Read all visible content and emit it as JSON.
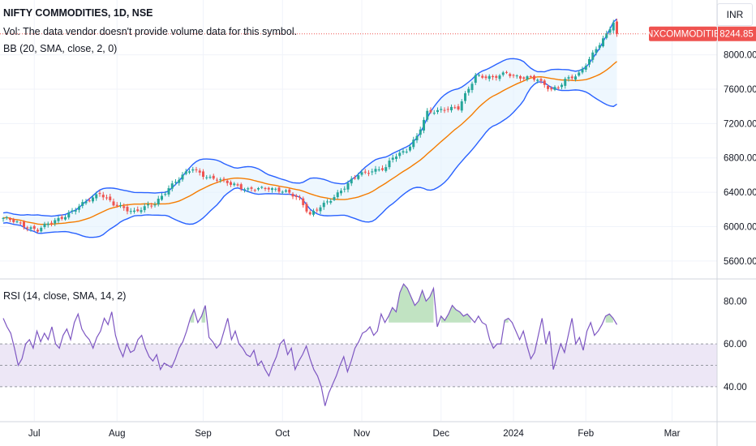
{
  "header": {
    "symbol_line": "NIFTY COMMODITIES, 1D, NSE",
    "vol_note": "Vol: The data vendor doesn't provide volume data for this symbol.",
    "bb_label": "BB (20, SMA, close, 2, 0)",
    "rsi_label": "RSI (14, close, SMA, 14, 2)",
    "currency": "INR"
  },
  "price_tag": {
    "name": "CNXCOMMODITIES",
    "value": "8244.85"
  },
  "colors": {
    "up": "#26a69a",
    "down": "#ef5350",
    "bb_band": "#2962ff",
    "bb_basis": "#f57c00",
    "bb_fill": "#e3f2fd",
    "rsi_line": "#7e57c2",
    "rsi_band": "#ede7f6",
    "ob_fill": "#4caf50"
  },
  "chart_data": [
    {
      "type": "candlestick",
      "title": "NIFTY COMMODITIES, 1D, NSE",
      "ylim": [
        5400,
        8450
      ],
      "y_ticks": [
        "5600.00",
        "6000.00",
        "6400.00",
        "6800.00",
        "7200.00",
        "7600.00",
        "8000.00"
      ],
      "x_ticks": [
        "Jul",
        "Aug",
        "Sep",
        "Oct",
        "Nov",
        "Dec",
        "2024",
        "Feb",
        "Mar"
      ],
      "close_anchors": [
        [
          0,
          6100
        ],
        [
          10,
          5960
        ],
        [
          21,
          6200
        ],
        [
          28,
          6400
        ],
        [
          32,
          6250
        ],
        [
          38,
          6180
        ],
        [
          44,
          6260
        ],
        [
          48,
          6460
        ],
        [
          55,
          6680
        ],
        [
          60,
          6560
        ],
        [
          67,
          6500
        ],
        [
          71,
          6420
        ],
        [
          77,
          6460
        ],
        [
          83,
          6380
        ],
        [
          86,
          6330
        ],
        [
          89,
          6140
        ],
        [
          94,
          6280
        ],
        [
          98,
          6430
        ],
        [
          103,
          6600
        ],
        [
          107,
          6660
        ],
        [
          111,
          6680
        ],
        [
          113,
          6800
        ],
        [
          117,
          6900
        ],
        [
          120,
          7050
        ],
        [
          123,
          7320
        ],
        [
          128,
          7380
        ],
        [
          132,
          7370
        ],
        [
          137,
          7770
        ],
        [
          142,
          7720
        ],
        [
          146,
          7800
        ],
        [
          150,
          7730
        ],
        [
          155,
          7720
        ],
        [
          159,
          7600
        ],
        [
          161,
          7610
        ],
        [
          163,
          7700
        ],
        [
          167,
          7790
        ],
        [
          171,
          8000
        ],
        [
          175,
          8240
        ],
        [
          177,
          8400
        ],
        [
          178,
          8244.85
        ]
      ],
      "bollinger": {
        "length": 20,
        "ma": "SMA",
        "source": "close",
        "mult": 2
      }
    },
    {
      "type": "line",
      "title": "RSI (14, close, SMA, 14, 2)",
      "ylim": [
        24,
        90
      ],
      "y_ticks": [
        "40.00",
        "60.00",
        "80.00"
      ],
      "bands": {
        "upper": 60,
        "middle": 50,
        "lower": 40
      },
      "overbought_fill_above": 70,
      "values": [
        72,
        68,
        65,
        58,
        50,
        53,
        60,
        62,
        58,
        66,
        61,
        65,
        62,
        68,
        60,
        58,
        64,
        67,
        62,
        70,
        74,
        67,
        64,
        62,
        58,
        63,
        66,
        72,
        69,
        75,
        64,
        58,
        54,
        60,
        56,
        57,
        62,
        64,
        58,
        54,
        52,
        55,
        48,
        51,
        50,
        49,
        53,
        58,
        61,
        66,
        72,
        76,
        70,
        73,
        78,
        63,
        61,
        58,
        60,
        66,
        72,
        62,
        66,
        60,
        58,
        55,
        54,
        57,
        50,
        52,
        48,
        45,
        50,
        54,
        60,
        62,
        55,
        58,
        48,
        52,
        55,
        59,
        53,
        48,
        45,
        40,
        31,
        37,
        41,
        45,
        50,
        54,
        47,
        52,
        58,
        61,
        65,
        66,
        68,
        64,
        66,
        74,
        70,
        73,
        77,
        75,
        84,
        88,
        86,
        82,
        78,
        80,
        85,
        80,
        82,
        86,
        68,
        73,
        71,
        74,
        78,
        76,
        75,
        73,
        74,
        72,
        70,
        73,
        70,
        69,
        62,
        58,
        60,
        60,
        71,
        72,
        70,
        66,
        62,
        66,
        59,
        53,
        56,
        64,
        72,
        60,
        66,
        48,
        54,
        60,
        56,
        64,
        72,
        60,
        63,
        57,
        66,
        70,
        64,
        66,
        69,
        73,
        74,
        72,
        69
      ]
    }
  ]
}
